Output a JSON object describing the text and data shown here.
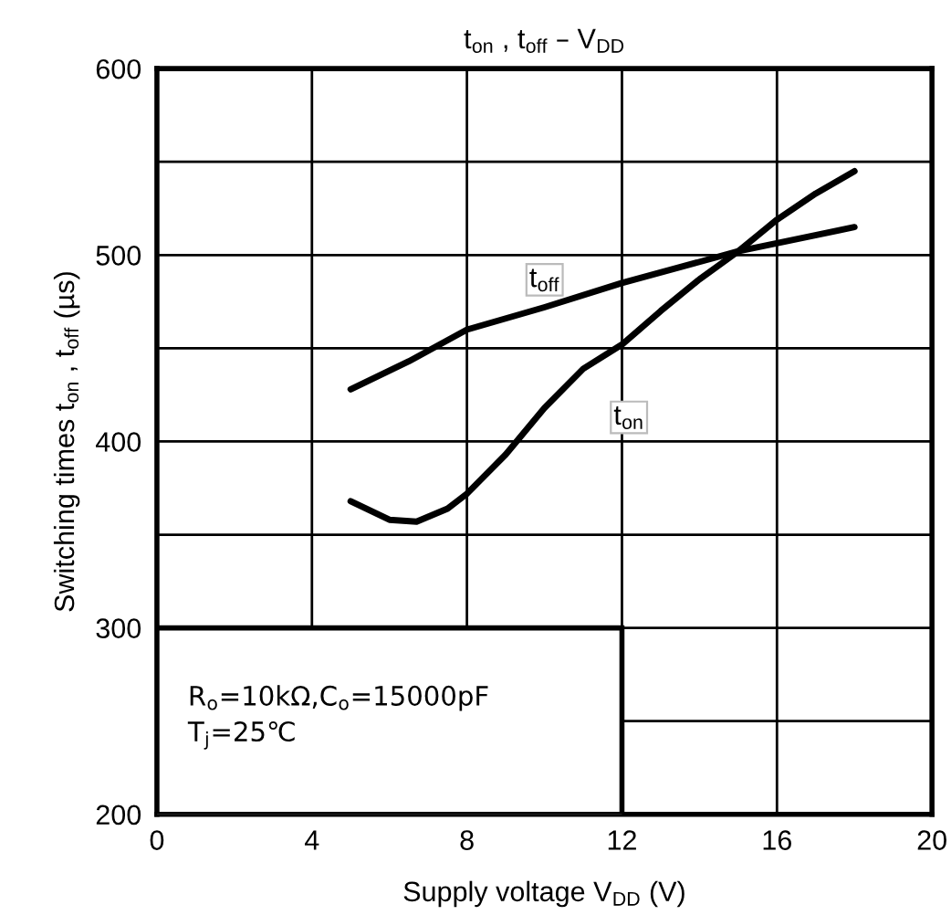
{
  "chart_data": {
    "type": "line",
    "title": "t$_{on}$ , t$_{off}$ – V$_{DD}$",
    "xlabel": "Supply voltage V$_{DD}$ (V)",
    "ylabel": "Switching times t$_{on}$ , t$_{off}$ (µs)",
    "series": [
      {
        "name": "t$_{off}$",
        "color": "#000000",
        "x": [
          5,
          6.5,
          8,
          10,
          12,
          15,
          18
        ],
        "values": [
          428,
          443,
          460,
          472,
          485,
          502,
          515
        ]
      },
      {
        "name": "t$_{on}$",
        "color": "#000000",
        "x": [
          5,
          6,
          6.7,
          7.5,
          8,
          9,
          10,
          11,
          12,
          13,
          14,
          15,
          16,
          17,
          18
        ],
        "values": [
          368,
          358,
          357,
          364,
          372,
          393,
          418,
          439,
          452,
          470,
          487,
          502,
          519,
          533,
          545
        ]
      }
    ],
    "xlim": [
      0,
      20
    ],
    "xticks": [
      0,
      4,
      8,
      12,
      16,
      20
    ],
    "ylim": [
      200,
      600
    ],
    "yticks": [
      200,
      {
        "value": 250,
        "label": null
      },
      300,
      {
        "value": 350,
        "label": null
      },
      400,
      {
        "value": 450,
        "label": null
      },
      500,
      {
        "value": 550,
        "label": null
      },
      600
    ],
    "grid": true,
    "marker": "none",
    "line_style": "solid",
    "legend": false,
    "annotations": [
      "R$_{o}$=10kΩ,C$_{o}$=15000pF\nT$_{j}$=25℃"
    ]
  }
}
